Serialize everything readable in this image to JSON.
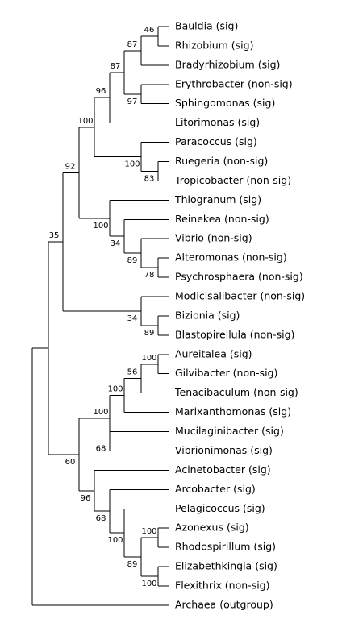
{
  "tree": {
    "leaves": [
      "Bauldia (sig)",
      "Rhizobium (sig)",
      "Bradyrhizobium (sig)",
      "Erythrobacter (non-sig)",
      "Sphingomonas (sig)",
      "Litorimonas (sig)",
      "Paracoccus (sig)",
      "Ruegeria (non-sig)",
      "Tropicobacter (non-sig)",
      "Thiogranum (sig)",
      "Reinekea (non-sig)",
      "Vibrio (non-sig)",
      "Alteromonas (non-sig)",
      "Psychrosphaera (non-sig)",
      "Modicisalibacter (non-sig)",
      "Bizionia (sig)",
      "Blastopirellula (non-sig)",
      "Aureitalea (sig)",
      "Gilvibacter (non-sig)",
      "Tenacibaculum (non-sig)",
      "Marixanthomonas (sig)",
      "Mucilaginibacter (sig)",
      "Vibrionimonas (sig)",
      "Acinetobacter (sig)",
      "Arcobacter (sig)",
      "Pelagicoccus (sig)",
      "Azonexus (sig)",
      "Rhodospirillum (sig)",
      "Elizabethkingia (sig)",
      "Flexithrix (non-sig)",
      "Archaea (outgroup)"
    ],
    "support_values": [
      "46",
      "87",
      "87",
      "96",
      "97",
      "100",
      "100",
      "83",
      "92",
      "100",
      "34",
      "89",
      "78",
      "35",
      "34",
      "89",
      "100",
      "56",
      "100",
      "100",
      "68",
      "60",
      "100",
      "68",
      "100",
      "89",
      "100",
      "96"
    ]
  }
}
